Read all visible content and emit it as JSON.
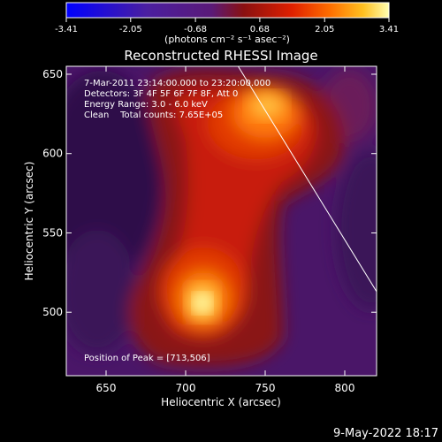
{
  "chart_data": {
    "type": "heatmap",
    "title": "Reconstructed RHESSI Image",
    "xlabel": "Heliocentric X (arcsec)",
    "ylabel": "Heliocentric Y (arcsec)",
    "xlim": [
      625,
      820
    ],
    "ylim": [
      460,
      655
    ],
    "x_ticks": [
      650,
      700,
      750,
      800
    ],
    "y_ticks": [
      500,
      550,
      600,
      650
    ],
    "x_tick_labels": [
      "650",
      "700",
      "750",
      "800"
    ],
    "y_tick_labels": [
      "500",
      "550",
      "600",
      "650"
    ],
    "colorbar": {
      "min": -3.41,
      "max": 3.41,
      "ticks": [
        -3.41,
        -2.05,
        -0.68,
        0.68,
        2.05,
        3.41
      ],
      "tick_labels": [
        "-3.41",
        "-2.05",
        "-0.68",
        "0.68",
        "2.05",
        "3.41"
      ],
      "unit_label": "(photons cm⁻² s⁻¹ asec⁻²)"
    },
    "annotations": {
      "time_range": "7-Mar-2011 23:14:00.000 to 23:20:00.000",
      "detectors": "Detectors: 3F 4F 5F 6F 7F 8F, Att 0",
      "energy_range": "Energy Range: 3.0 - 6.0 keV",
      "method_counts": "Clean    Total counts: 7.65E+05",
      "peak": "Position of Peak = [713,506]"
    },
    "peak_position": [
      713,
      506
    ],
    "sources": [
      {
        "x": 713,
        "y": 506,
        "peak": 3.41
      },
      {
        "x": 752,
        "y": 620,
        "peak": 2.6
      }
    ],
    "limb_line": [
      [
        733,
        655
      ],
      [
        820,
        513
      ]
    ],
    "colormap": [
      "#0000ff",
      "#4b1fa0",
      "#5a1a78",
      "#8a1010",
      "#e02000",
      "#ff7000",
      "#ffc020",
      "#ffff90"
    ]
  },
  "footer": {
    "timestamp": "9-May-2022 18:17"
  }
}
